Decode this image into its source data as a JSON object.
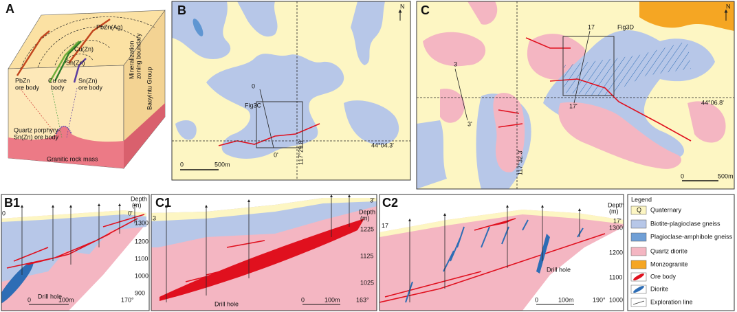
{
  "panel_a": {
    "label": "A",
    "pbzn_ag": "PbZn(Ag)",
    "cu_zn": "Cu(Zn)",
    "sn_zn": "Sn(Zn)",
    "zoning_boundary": [
      "Mineralization",
      "zoning boundary"
    ],
    "pbzn_ore_body": [
      "PbZn",
      "ore body"
    ],
    "cu_ore_body": [
      "Cu ore",
      "body"
    ],
    "sn_ore_body": [
      "Sn(Zn)",
      "ore body"
    ],
    "baoyintu": "Baoyintu Group",
    "quartz_porphyry": [
      "Quartz porphyry-",
      "Sn(Zn) ore body"
    ],
    "granitic": "Granitic rock mass"
  },
  "panel_b": {
    "label": "B",
    "north": "N",
    "line_start": "0",
    "box_label": "Fig3C",
    "line_end": "0'",
    "latitude": "44°04.3'",
    "longitude": "117°29.8'",
    "scale_start": "0",
    "scale_end": "500m"
  },
  "panel_c": {
    "label": "C",
    "north": "N",
    "line3_start": "3",
    "line3_end": "3'",
    "line17_start": "17",
    "box_label": "Fig3D",
    "line17_end": "17'",
    "latitude": "44°06.8'",
    "longitude": "117°32.3'",
    "scale_start": "0",
    "scale_end": "500m"
  },
  "section_b1": {
    "label": "B1",
    "line_start": "0",
    "line_end": "0'",
    "depth_title": [
      "Depth",
      "(m)"
    ],
    "depth_ticks": [
      "1300",
      "1200",
      "1100",
      "1000",
      "900"
    ],
    "drill_hole": "Drill hole",
    "scale_start": "0",
    "scale_end": "100m",
    "azimuth": "170°"
  },
  "section_c1": {
    "label": "C1",
    "line_start": "3",
    "line_end": "3'",
    "depth_title": [
      "Depth",
      "(m)"
    ],
    "depth_ticks": [
      "1225",
      "1125",
      "1025"
    ],
    "drill_hole": "Drill hole",
    "scale_start": "0",
    "scale_end": "100m",
    "azimuth": "163°"
  },
  "section_c2": {
    "label": "C2",
    "line_start": "17",
    "line_end": "17'",
    "depth_title": [
      "Depth",
      "(m)"
    ],
    "depth_ticks": [
      "1300",
      "1200",
      "1100",
      "1000"
    ],
    "drill_hole": "Drill hole",
    "scale_start": "0",
    "scale_end": "100m",
    "azimuth": "190°"
  },
  "legend": {
    "title": "Legend",
    "symbol_q": "Q",
    "items": [
      "Quaternary",
      "Biotite-plagioclase gneiss",
      "Plagioclase-amphibole gneiss",
      "Quartz diorite",
      "Monzogranite",
      "Ore body",
      "Diorite",
      "Exploration line"
    ]
  }
}
